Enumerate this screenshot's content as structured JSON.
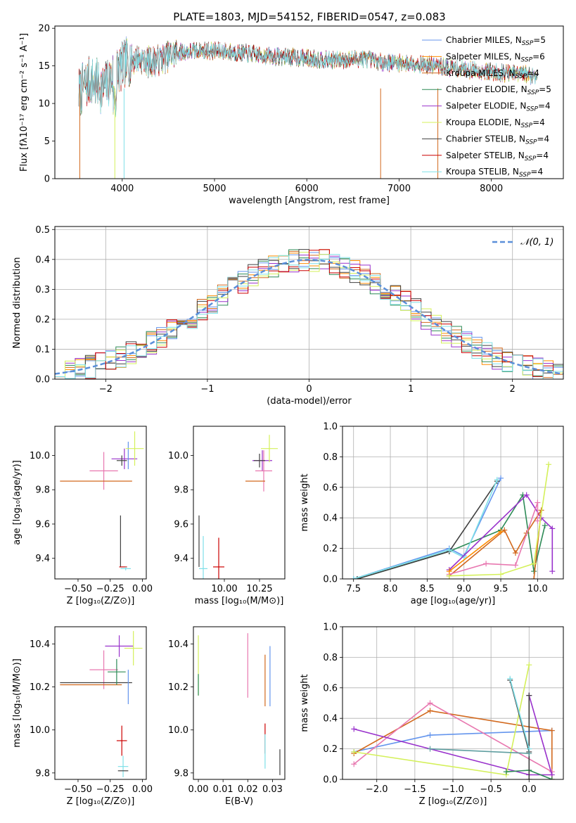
{
  "figure_title": "PLATE=1803, MJD=54152, FIBERID=0547, z=0.083",
  "chart_data": [
    {
      "id": "spectrum",
      "type": "line",
      "title": "PLATE=1803, MJD=54152, FIBERID=0547, z=0.083",
      "xlabel": "wavelength [Angstrom, rest frame]",
      "ylabel": "Flux [fλ10⁻¹⁷ erg cm⁻² s⁻¹ A⁻¹]",
      "xlim": [
        3270,
        8780
      ],
      "ylim": [
        0,
        20.3
      ],
      "xticks": [
        4000,
        5000,
        6000,
        7000,
        8000
      ],
      "yticks": [
        0,
        5,
        10,
        15,
        20
      ],
      "grid": false,
      "legend_position": "right",
      "series": [
        {
          "name": "Chabrier MILES, N_SSP=5",
          "color": "#6495ED"
        },
        {
          "name": "Salpeter MILES, N_SSP=6",
          "color": "#FF8C00"
        },
        {
          "name": "Kroupa MILES, N_SSP=4",
          "color": "#D2691E"
        },
        {
          "name": "Chabrier ELODIE, N_SSP=5",
          "color": "#2E8B57"
        },
        {
          "name": "Salpeter ELODIE, N_SSP=4",
          "color": "#9932CC"
        },
        {
          "name": "Kroupa ELODIE, N_SSP=4",
          "color": "#D4F05A"
        },
        {
          "name": "Chabrier STELIB, N_SSP=4",
          "color": "#404040"
        },
        {
          "name": "Salpeter STELIB, N_SSP=4",
          "color": "#CC0000"
        },
        {
          "name": "Kroupa STELIB, N_SSP=4",
          "color": "#7FE0E8"
        }
      ],
      "continuum": {
        "x": [
          3530,
          3650,
          3800,
          3950,
          4050,
          4150,
          4300,
          4450,
          4600,
          4800,
          5000,
          5200,
          5400,
          5600,
          5800,
          6000,
          6200,
          6400,
          6600,
          6800,
          7000,
          7200,
          7400,
          7600,
          7800,
          8000,
          8200,
          8400,
          8500
        ],
        "y": [
          11.5,
          13.0,
          12.0,
          14.5,
          15.5,
          16.0,
          15.5,
          16.0,
          16.8,
          17.0,
          17.0,
          16.8,
          16.6,
          16.3,
          16.2,
          16.0,
          15.8,
          15.8,
          16.0,
          15.5,
          15.4,
          15.3,
          15.0,
          14.7,
          14.4,
          14.2,
          14.0,
          13.8,
          13.7
        ]
      }
    },
    {
      "id": "residuals",
      "type": "step",
      "xlabel": "(data-model)/error",
      "ylabel": "Normed distribution",
      "xlim": [
        -2.5,
        2.5
      ],
      "ylim": [
        0,
        0.51
      ],
      "xticks": [
        -2,
        -1,
        0,
        1,
        2
      ],
      "yticks": [
        0.0,
        0.1,
        0.2,
        0.3,
        0.4,
        0.5
      ],
      "grid": true,
      "legend_position": "top-right",
      "legend_entries": [
        "𝒩(0, 1)"
      ],
      "reference_curve": {
        "name": "N(0,1)",
        "mean": 0,
        "sigma": 1,
        "color": "#5B8FD9",
        "style": "dashed"
      },
      "bin_width": 0.1
    },
    {
      "id": "age_vs_Z",
      "type": "errorbar",
      "xlabel": "Z [log₁₀(Z/Z⊙)]",
      "ylabel": "age  [log₁₀(age/yr)]",
      "xlim": [
        -0.68,
        0.03
      ],
      "ylim": [
        9.28,
        10.17
      ],
      "xticks": [
        -0.5,
        -0.25,
        0.0
      ],
      "yticks": [
        9.4,
        9.6,
        9.8,
        10.0
      ],
      "points": [
        {
          "x": -0.14,
          "y": 9.98,
          "xerr": 0.1,
          "yerr": 0.06,
          "color": "#9932CC"
        },
        {
          "x": -0.3,
          "y": 9.91,
          "xerr": 0.11,
          "yerr": 0.11,
          "color": "#E878B0"
        },
        {
          "x": -0.36,
          "y": 9.85,
          "xerr": 0.28,
          "yerr": 0.0,
          "color": "#D2691E"
        },
        {
          "x": -0.11,
          "y": 10.0,
          "xerr": 0.0,
          "yerr": 0.08,
          "color": "#6495ED"
        },
        {
          "x": -0.06,
          "y": 10.04,
          "xerr": 0.07,
          "yerr": 0.1,
          "color": "#D4F05A"
        },
        {
          "x": -0.16,
          "y": 9.97,
          "xerr": 0.04,
          "yerr": 0.03,
          "color": "#404040"
        },
        {
          "x": -0.17,
          "y": 9.5,
          "xerr": 0.0,
          "yerr": 0.15,
          "color": "#404040"
        },
        {
          "x": -0.15,
          "y": 9.35,
          "xerr": 0.03,
          "yerr": 0.0,
          "color": "#CC0000"
        },
        {
          "x": -0.13,
          "y": 9.34,
          "xerr": 0.04,
          "yerr": 0.01,
          "color": "#7FE0E8"
        }
      ]
    },
    {
      "id": "age_vs_mass",
      "type": "errorbar",
      "xlabel": "mass [log₁₀(M/M⊙)]",
      "ylabel": "",
      "xlim": [
        9.78,
        10.43
      ],
      "ylim": [
        9.28,
        10.17
      ],
      "xticks": [
        10.0,
        10.25
      ],
      "yticks": [
        9.4,
        9.6,
        9.8,
        10.0
      ],
      "points": [
        {
          "x": 10.27,
          "y": 9.97,
          "xerr": 0.07,
          "yerr": 0.06,
          "color": "#9932CC"
        },
        {
          "x": 10.28,
          "y": 9.91,
          "xerr": 0.06,
          "yerr": 0.12,
          "color": "#E878B0"
        },
        {
          "x": 10.22,
          "y": 9.85,
          "xerr": 0.07,
          "yerr": 0.0,
          "color": "#D2691E"
        },
        {
          "x": 10.32,
          "y": 10.04,
          "xerr": 0.06,
          "yerr": 0.08,
          "color": "#D4F05A"
        },
        {
          "x": 10.25,
          "y": 9.97,
          "xerr": 0.04,
          "yerr": 0.04,
          "color": "#404040"
        },
        {
          "x": 9.82,
          "y": 9.5,
          "xerr": 0.0,
          "yerr": 0.15,
          "color": "#404040"
        },
        {
          "x": 9.96,
          "y": 9.35,
          "xerr": 0.04,
          "yerr": 0.17,
          "color": "#CC0000"
        },
        {
          "x": 9.85,
          "y": 9.34,
          "xerr": 0.03,
          "yerr": 0.19,
          "color": "#7FE0E8"
        }
      ]
    },
    {
      "id": "weight_vs_age",
      "type": "line",
      "xlabel": "age  [log₁₀(age/yr)]",
      "ylabel": "mass weight",
      "xlim": [
        7.35,
        10.35
      ],
      "ylim": [
        0,
        1.0
      ],
      "xticks": [
        7.5,
        8.0,
        8.5,
        9.0,
        9.5,
        10.0
      ],
      "yticks": [
        0.0,
        0.2,
        0.4,
        0.6,
        0.8,
        1.0
      ],
      "grid": true,
      "series": [
        {
          "color": "#6495ED",
          "x": [
            7.5,
            8.8,
            9.0,
            9.5
          ],
          "y": [
            0.0,
            0.2,
            0.15,
            0.66
          ]
        },
        {
          "color": "#2E8B57",
          "x": [
            7.55,
            8.8,
            9.5,
            9.8,
            9.95,
            10.1
          ],
          "y": [
            0.0,
            0.18,
            0.32,
            0.55,
            0.05,
            0.35
          ]
        },
        {
          "color": "#404040",
          "x": [
            7.55,
            8.8,
            9.45
          ],
          "y": [
            0.0,
            0.18,
            0.64
          ]
        },
        {
          "color": "#7FE0E8",
          "x": [
            7.5,
            8.8,
            9.0,
            9.45
          ],
          "y": [
            0.0,
            0.19,
            0.14,
            0.65
          ]
        },
        {
          "color": "#9932CC",
          "x": [
            8.8,
            9.85,
            10.05,
            10.2,
            10.2
          ],
          "y": [
            0.06,
            0.55,
            0.4,
            0.33,
            0.05
          ]
        },
        {
          "color": "#D2691E",
          "x": [
            8.8,
            9.55,
            9.7,
            9.85,
            10.05,
            9.95
          ],
          "y": [
            0.02,
            0.32,
            0.17,
            0.3,
            0.45,
            0.0
          ]
        },
        {
          "color": "#E878B0",
          "x": [
            8.8,
            9.3,
            9.7,
            10.0,
            10.0
          ],
          "y": [
            0.03,
            0.1,
            0.09,
            0.5,
            0.38
          ]
        },
        {
          "color": "#D4F05A",
          "x": [
            8.8,
            9.5,
            9.95,
            10.15
          ],
          "y": [
            0.02,
            0.03,
            0.1,
            0.75
          ]
        },
        {
          "color": "#FF8C00",
          "x": [
            8.8,
            9.5
          ],
          "y": [
            0.05,
            0.31
          ]
        }
      ]
    },
    {
      "id": "mass_vs_Z",
      "type": "errorbar",
      "xlabel": "Z [log₁₀(Z/Z⊙)]",
      "ylabel": "mass [log₁₀(M/M⊙)]",
      "xlim": [
        -0.68,
        0.03
      ],
      "ylim": [
        9.77,
        10.48
      ],
      "xticks": [
        -0.5,
        -0.25,
        0.0
      ],
      "yticks": [
        9.8,
        10.0,
        10.2,
        10.4
      ],
      "points": [
        {
          "x": -0.18,
          "y": 10.39,
          "xerr": 0.11,
          "yerr": 0.05,
          "color": "#9932CC"
        },
        {
          "x": -0.3,
          "y": 10.28,
          "xerr": 0.11,
          "yerr": 0.09,
          "color": "#E878B0"
        },
        {
          "x": -0.36,
          "y": 10.22,
          "xerr": 0.28,
          "yerr": 0.0,
          "color": "#404040"
        },
        {
          "x": -0.4,
          "y": 10.21,
          "xerr": 0.24,
          "yerr": 0.0,
          "color": "#D2691E"
        },
        {
          "x": -0.11,
          "y": 10.2,
          "xerr": 0.0,
          "yerr": 0.08,
          "color": "#6495ED"
        },
        {
          "x": -0.07,
          "y": 10.38,
          "xerr": 0.07,
          "yerr": 0.08,
          "color": "#D4F05A"
        },
        {
          "x": -0.2,
          "y": 10.27,
          "xerr": 0.07,
          "yerr": 0.06,
          "color": "#2E8B57"
        },
        {
          "x": -0.16,
          "y": 9.95,
          "xerr": 0.04,
          "yerr": 0.07,
          "color": "#CC0000"
        },
        {
          "x": -0.15,
          "y": 9.83,
          "xerr": 0.04,
          "yerr": 0.05,
          "color": "#7FE0E8"
        },
        {
          "x": -0.15,
          "y": 9.81,
          "xerr": 0.04,
          "yerr": 0.0,
          "color": "#404040"
        }
      ]
    },
    {
      "id": "mass_vs_ebv",
      "type": "errorbar",
      "xlabel": "E(B-V)",
      "ylabel": "",
      "xlim": [
        -0.002,
        0.035
      ],
      "ylim": [
        9.77,
        10.48
      ],
      "xticks": [
        0.0,
        0.01,
        0.02,
        0.03
      ],
      "yticks": [
        9.8,
        10.0,
        10.2,
        10.4
      ],
      "points": [
        {
          "x": 0.0,
          "y": 10.3,
          "xerr": 0.0,
          "yerr": 0.14,
          "color": "#D4F05A"
        },
        {
          "x": 0.0,
          "y": 10.21,
          "xerr": 0.0,
          "yerr": 0.05,
          "color": "#2E8B57"
        },
        {
          "x": 0.02,
          "y": 10.3,
          "xerr": 0.0,
          "yerr": 0.15,
          "color": "#E878B0"
        },
        {
          "x": 0.027,
          "y": 10.23,
          "xerr": 0.0,
          "yerr": 0.12,
          "color": "#D2691E"
        },
        {
          "x": 0.029,
          "y": 10.25,
          "xerr": 0.0,
          "yerr": 0.14,
          "color": "#6495ED"
        },
        {
          "x": 0.027,
          "y": 9.96,
          "xerr": 0.0,
          "yerr": 0.07,
          "color": "#CC0000"
        },
        {
          "x": 0.027,
          "y": 9.9,
          "xerr": 0.0,
          "yerr": 0.08,
          "color": "#7FE0E8"
        },
        {
          "x": 0.033,
          "y": 9.85,
          "xerr": 0.0,
          "yerr": 0.06,
          "color": "#404040"
        }
      ]
    },
    {
      "id": "weight_vs_Z",
      "type": "line",
      "xlabel": "Z [log₁₀(Z/Z⊙)]",
      "ylabel": "mass weight",
      "xlim": [
        -2.45,
        0.45
      ],
      "ylim": [
        0,
        1.0
      ],
      "xticks": [
        -2.0,
        -1.5,
        -1.0,
        -0.5,
        0.0
      ],
      "yticks": [
        0.0,
        0.2,
        0.4,
        0.6,
        0.8,
        1.0
      ],
      "grid": true,
      "series": [
        {
          "color": "#6495ED",
          "x": [
            -2.3,
            -1.3,
            0.3
          ],
          "y": [
            0.18,
            0.29,
            0.32
          ]
        },
        {
          "color": "#D2691E",
          "x": [
            -2.3,
            -1.3,
            0.3,
            0.3
          ],
          "y": [
            0.17,
            0.45,
            0.32,
            0.0
          ]
        },
        {
          "color": "#E878B0",
          "x": [
            -2.3,
            -1.3,
            0.3
          ],
          "y": [
            0.1,
            0.5,
            0.05
          ]
        },
        {
          "color": "#9932CC",
          "x": [
            -2.3,
            0.0,
            0.3,
            0.0
          ],
          "y": [
            0.33,
            0.03,
            0.03,
            0.55
          ]
        },
        {
          "color": "#D4F05A",
          "x": [
            -2.3,
            -0.3,
            0.0
          ],
          "y": [
            0.18,
            0.03,
            0.75
          ]
        },
        {
          "color": "#2E8B57",
          "x": [
            -0.3,
            0.0,
            0.3
          ],
          "y": [
            0.05,
            0.06,
            0.0
          ]
        },
        {
          "color": "#404040",
          "x": [
            -0.25,
            0.0,
            0.0,
            0.0
          ],
          "y": [
            0.65,
            0.18,
            0.55,
            0.0
          ]
        },
        {
          "color": "#7FE0E8",
          "x": [
            -0.25,
            0.0
          ],
          "y": [
            0.66,
            0.2
          ]
        },
        {
          "color": "#5F9EA0",
          "x": [
            -1.3,
            0.0
          ],
          "y": [
            0.2,
            0.17
          ]
        }
      ]
    }
  ]
}
